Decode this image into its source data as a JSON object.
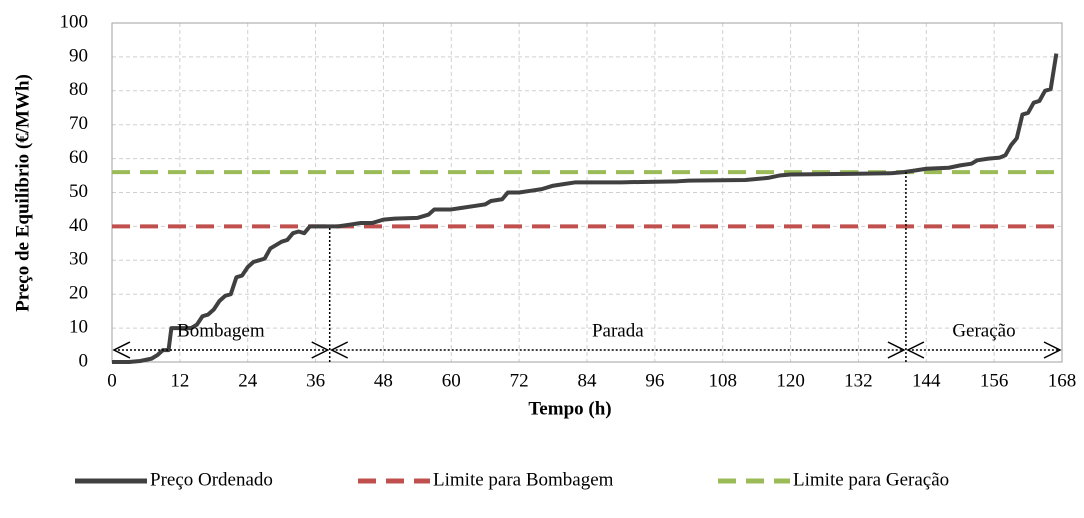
{
  "chart_data": {
    "type": "line",
    "xlabel": "Tempo (h)",
    "ylabel": "Preço de Equilíbrio (€/MWh)",
    "xlim": [
      0,
      168
    ],
    "ylim": [
      0,
      100
    ],
    "xticks": [
      0,
      12,
      24,
      36,
      48,
      60,
      72,
      84,
      96,
      108,
      120,
      132,
      144,
      156,
      168
    ],
    "yticks": [
      0,
      10,
      20,
      30,
      40,
      50,
      60,
      70,
      80,
      90,
      100
    ],
    "grid": true,
    "legend": "bottom",
    "series": [
      {
        "name": "Preço Ordenado",
        "color": "#404040",
        "style": "solid",
        "x": [
          0,
          1,
          3,
          5,
          7,
          8,
          9,
          10,
          10.5,
          12,
          14,
          15,
          16,
          17,
          18,
          19,
          20,
          21,
          22,
          23,
          24,
          25,
          26,
          27,
          28,
          29,
          30,
          31,
          32,
          33,
          34,
          35,
          36,
          38,
          40,
          42,
          44,
          46,
          48,
          50,
          54,
          56,
          57,
          60,
          62,
          64,
          66,
          67,
          69,
          70,
          72,
          74,
          76,
          78,
          80,
          82,
          90,
          100,
          102,
          112,
          116,
          118,
          120,
          130,
          138,
          140,
          142,
          144,
          148,
          150,
          152,
          153,
          155,
          157,
          158,
          159,
          160,
          161,
          162,
          163,
          164,
          165,
          166,
          167
        ],
        "values": [
          0,
          0,
          0,
          0.3,
          1,
          2,
          3.5,
          3.5,
          10,
          10,
          10,
          11,
          13.5,
          14,
          15.5,
          18,
          19.5,
          20,
          25,
          25.5,
          28,
          29.5,
          30,
          30.5,
          33.5,
          34.5,
          35.5,
          36,
          38,
          38.5,
          38,
          40,
          40,
          40,
          40,
          40.5,
          41,
          41,
          42,
          42.3,
          42.5,
          43.5,
          45,
          45,
          45.5,
          46,
          46.5,
          47.5,
          48,
          50,
          50,
          50.5,
          51,
          52,
          52.5,
          53,
          53,
          53.3,
          53.5,
          53.7,
          54.3,
          55,
          55.3,
          55.5,
          55.7,
          56,
          56.5,
          57,
          57.3,
          58,
          58.5,
          59.5,
          60,
          60.3,
          61,
          64,
          66,
          73,
          73.5,
          76.5,
          77,
          80,
          80.5,
          91
        ]
      },
      {
        "name": "Limite para Bombagem",
        "color": "#c0504d",
        "style": "dashed",
        "x": [
          0,
          168
        ],
        "values": [
          40,
          40
        ]
      },
      {
        "name": "Limite para Geração",
        "color": "#9bbb59",
        "style": "dashed",
        "x": [
          0,
          168
        ],
        "values": [
          56,
          56
        ]
      }
    ],
    "spans": [
      {
        "label": "Bombagem",
        "x0": 0,
        "x1": 38.5
      },
      {
        "label": "Parada",
        "x0": 38.5,
        "x1": 140.4
      },
      {
        "label": "Geração",
        "x0": 140.4,
        "x1": 168
      }
    ],
    "markers": [
      {
        "x": 38.5,
        "y": 40
      },
      {
        "x": 140.4,
        "y": 56
      }
    ]
  }
}
